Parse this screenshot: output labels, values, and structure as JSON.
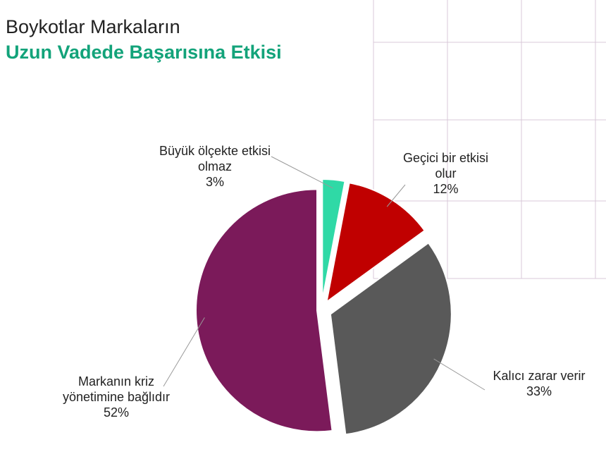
{
  "chart_data": {
    "type": "pie",
    "title": "Boykotlar Markaların",
    "subtitle": "Uzun Vadede Başarısına Etkisi",
    "categories": [
      "Büyük ölçekte etkisi olmaz",
      "Geçici bir etkisi olur",
      "Kalıcı zarar verir",
      "Markanın kriz yönetimine bağlıdır"
    ],
    "values": [
      3,
      12,
      33,
      52
    ],
    "value_labels": [
      "3%",
      "12%",
      "33%",
      "52%"
    ],
    "colors": [
      "#2fd9a6",
      "#c00000",
      "#595959",
      "#7b1a5a"
    ]
  }
}
